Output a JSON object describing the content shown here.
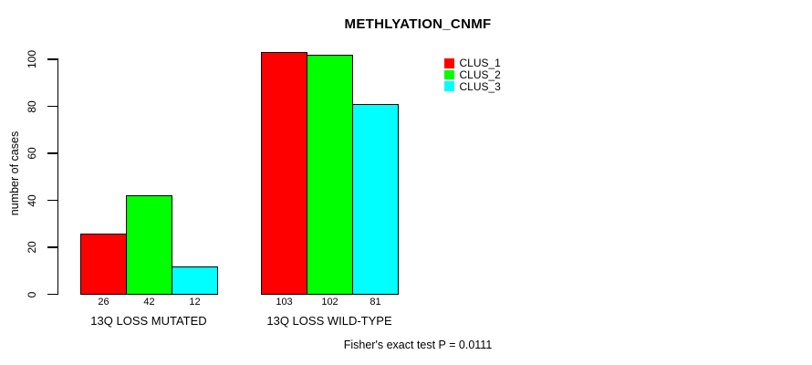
{
  "chart_data": {
    "type": "bar",
    "title": "METHLYATION_CNMF",
    "xlabel": "",
    "ylabel": "number of cases",
    "ylim": [
      0,
      100
    ],
    "yticks": [
      0,
      20,
      40,
      60,
      80,
      100
    ],
    "grid": false,
    "legend_position": "top-right",
    "categories": [
      "13Q LOSS MUTATED",
      "13Q LOSS WILD-TYPE"
    ],
    "series": [
      {
        "name": "CLUS_1",
        "color": "#ff0000",
        "values": [
          26,
          103
        ]
      },
      {
        "name": "CLUS_2",
        "color": "#00ff00",
        "values": [
          42,
          102
        ]
      },
      {
        "name": "CLUS_3",
        "color": "#00ffff",
        "values": [
          12,
          81
        ]
      }
    ],
    "bar_value_labels": [
      [
        "26",
        "42",
        "12"
      ],
      [
        "103",
        "102",
        "81"
      ]
    ],
    "annotation": "Fisher's exact test P = 0.0111"
  }
}
